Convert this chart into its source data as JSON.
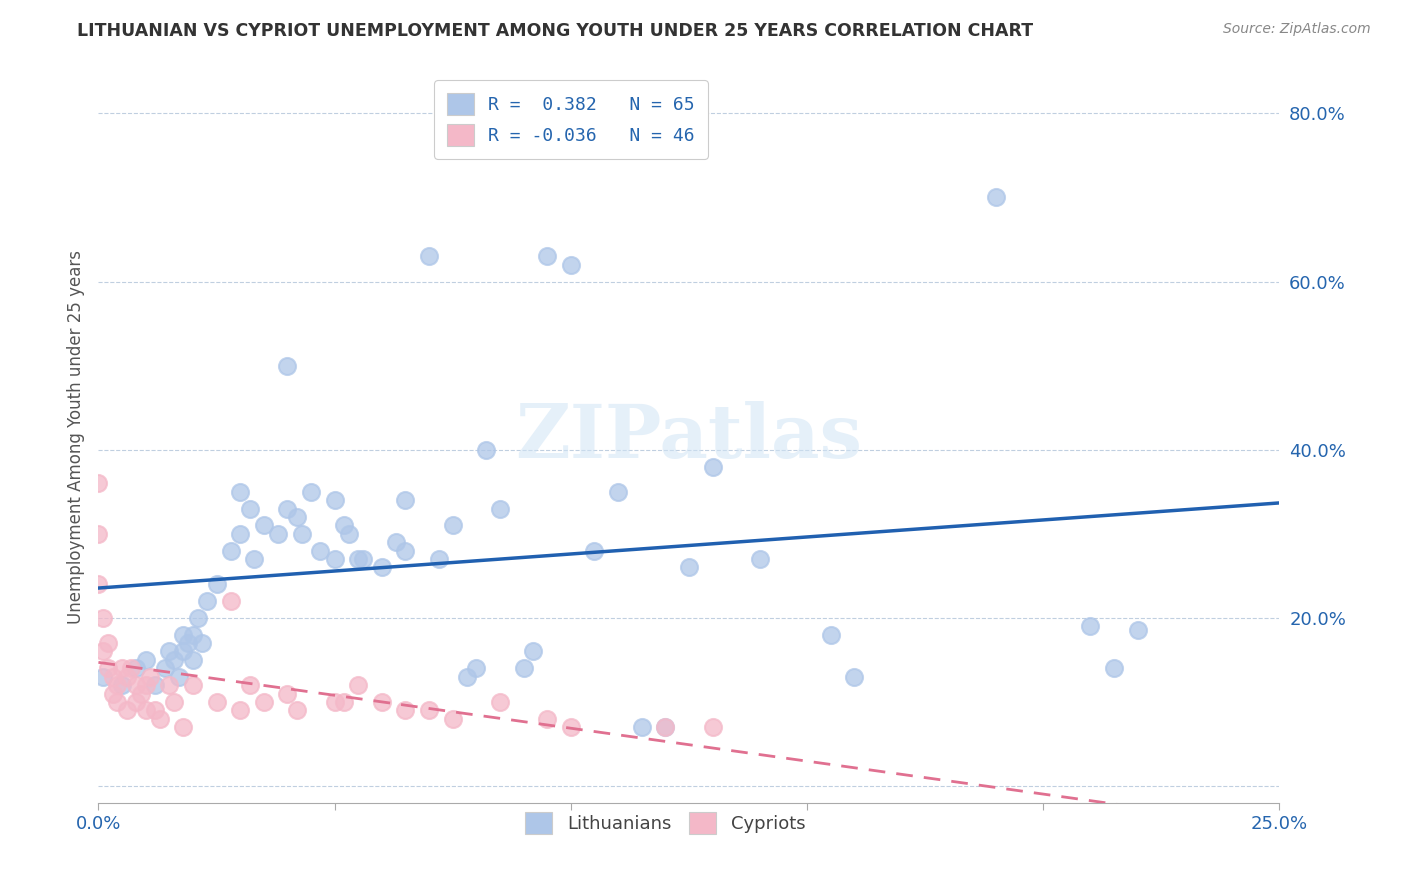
{
  "title": "LITHUANIAN VS CYPRIOT UNEMPLOYMENT AMONG YOUTH UNDER 25 YEARS CORRELATION CHART",
  "source": "Source: ZipAtlas.com",
  "ylabel": "Unemployment Among Youth under 25 years",
  "xlim": [
    0.0,
    0.25
  ],
  "ylim": [
    -0.02,
    0.85
  ],
  "xticks": [
    0.0,
    0.05,
    0.1,
    0.15,
    0.2,
    0.25
  ],
  "yticks": [
    0.0,
    0.2,
    0.4,
    0.6,
    0.8
  ],
  "ytick_labels": [
    "",
    "20.0%",
    "40.0%",
    "60.0%",
    "80.0%"
  ],
  "xtick_labels": [
    "0.0%",
    "",
    "",
    "",
    "",
    "25.0%"
  ],
  "blue_color": "#aec6e8",
  "pink_color": "#f4b8c8",
  "blue_line_color": "#2060b0",
  "pink_line_color": "#e07090",
  "watermark": "ZIPatlas",
  "legend_label_1": "Lithuanians",
  "legend_label_2": "Cypriots",
  "legend_entry_1": "R =  0.382   N = 65",
  "legend_entry_2": "R = -0.036   N = 46",
  "blue_scatter_x": [
    0.001,
    0.005,
    0.008,
    0.01,
    0.012,
    0.014,
    0.015,
    0.016,
    0.017,
    0.018,
    0.018,
    0.019,
    0.02,
    0.02,
    0.021,
    0.022,
    0.023,
    0.025,
    0.028,
    0.03,
    0.03,
    0.032,
    0.033,
    0.035,
    0.038,
    0.04,
    0.04,
    0.042,
    0.043,
    0.045,
    0.047,
    0.05,
    0.05,
    0.052,
    0.053,
    0.055,
    0.056,
    0.06,
    0.063,
    0.065,
    0.065,
    0.07,
    0.072,
    0.075,
    0.078,
    0.08,
    0.082,
    0.085,
    0.09,
    0.092,
    0.095,
    0.1,
    0.105,
    0.11,
    0.115,
    0.12,
    0.125,
    0.13,
    0.14,
    0.155,
    0.16,
    0.19,
    0.21,
    0.215,
    0.22
  ],
  "blue_scatter_y": [
    0.13,
    0.12,
    0.14,
    0.15,
    0.12,
    0.14,
    0.16,
    0.15,
    0.13,
    0.16,
    0.18,
    0.17,
    0.15,
    0.18,
    0.2,
    0.17,
    0.22,
    0.24,
    0.28,
    0.35,
    0.3,
    0.33,
    0.27,
    0.31,
    0.3,
    0.33,
    0.5,
    0.32,
    0.3,
    0.35,
    0.28,
    0.34,
    0.27,
    0.31,
    0.3,
    0.27,
    0.27,
    0.26,
    0.29,
    0.28,
    0.34,
    0.63,
    0.27,
    0.31,
    0.13,
    0.14,
    0.4,
    0.33,
    0.14,
    0.16,
    0.63,
    0.62,
    0.28,
    0.35,
    0.07,
    0.07,
    0.26,
    0.38,
    0.27,
    0.18,
    0.13,
    0.7,
    0.19,
    0.14,
    0.185
  ],
  "pink_scatter_x": [
    0.0,
    0.0,
    0.0,
    0.001,
    0.001,
    0.002,
    0.002,
    0.003,
    0.003,
    0.004,
    0.004,
    0.005,
    0.006,
    0.006,
    0.007,
    0.008,
    0.008,
    0.009,
    0.01,
    0.01,
    0.011,
    0.012,
    0.013,
    0.015,
    0.016,
    0.018,
    0.02,
    0.025,
    0.028,
    0.03,
    0.032,
    0.035,
    0.04,
    0.042,
    0.05,
    0.052,
    0.055,
    0.06,
    0.065,
    0.07,
    0.075,
    0.085,
    0.095,
    0.1,
    0.12,
    0.13
  ],
  "pink_scatter_y": [
    0.36,
    0.3,
    0.24,
    0.2,
    0.16,
    0.17,
    0.14,
    0.13,
    0.11,
    0.12,
    0.1,
    0.14,
    0.13,
    0.09,
    0.14,
    0.12,
    0.1,
    0.11,
    0.12,
    0.09,
    0.13,
    0.09,
    0.08,
    0.12,
    0.1,
    0.07,
    0.12,
    0.1,
    0.22,
    0.09,
    0.12,
    0.1,
    0.11,
    0.09,
    0.1,
    0.1,
    0.12,
    0.1,
    0.09,
    0.09,
    0.08,
    0.1,
    0.08,
    0.07,
    0.07,
    0.07
  ]
}
